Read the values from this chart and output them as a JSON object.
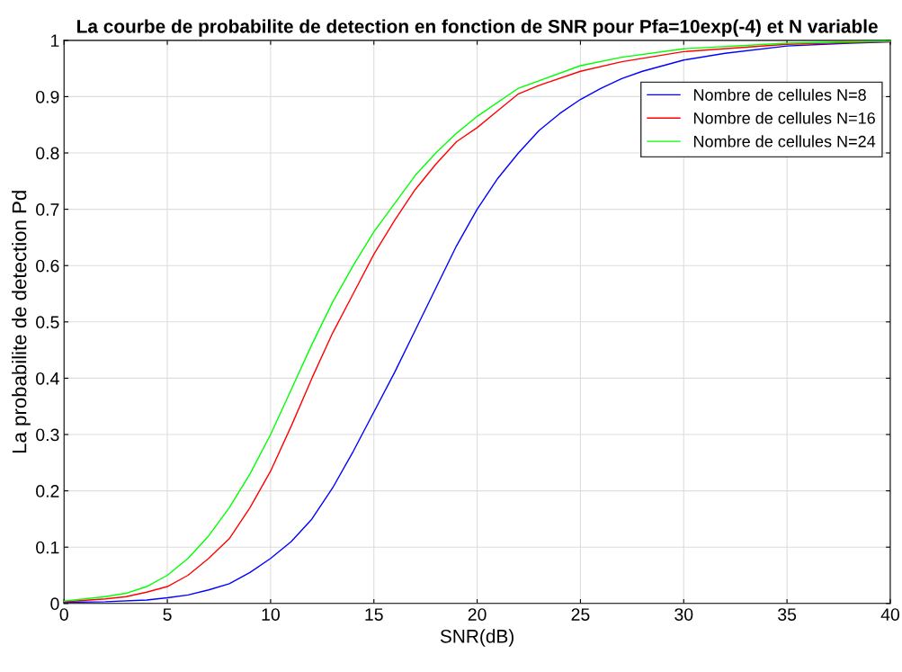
{
  "chart_data": {
    "type": "line",
    "title": "La courbe de probabilite de detection en fonction de SNR pour Pfa=10exp(-4) et N variable",
    "xlabel": "SNR(dB)",
    "ylabel": "La probabilite de detection Pd",
    "series": [
      {
        "name": "Nombre de cellules N=8",
        "color": "#0000ff",
        "x": [
          0,
          2,
          4,
          5,
          6,
          7,
          8,
          9,
          10,
          11,
          12,
          13,
          14,
          15,
          16,
          17,
          18,
          19,
          20,
          21,
          22,
          23,
          24,
          25,
          26,
          27,
          28,
          30,
          32,
          35,
          38,
          40
        ],
        "values": [
          0.002,
          0.003,
          0.006,
          0.01,
          0.015,
          0.024,
          0.035,
          0.055,
          0.08,
          0.11,
          0.15,
          0.205,
          0.27,
          0.34,
          0.41,
          0.485,
          0.56,
          0.635,
          0.7,
          0.755,
          0.8,
          0.84,
          0.87,
          0.895,
          0.915,
          0.932,
          0.945,
          0.965,
          0.977,
          0.99,
          0.995,
          0.997
        ]
      },
      {
        "name": "Nombre de cellules N=16",
        "color": "#ff0000",
        "x": [
          0,
          2,
          3,
          4,
          5,
          6,
          7,
          8,
          9,
          10,
          11,
          12,
          13,
          14,
          15,
          16,
          17,
          18,
          19,
          20,
          21,
          22,
          23,
          25,
          27,
          30,
          35,
          40
        ],
        "values": [
          0.003,
          0.008,
          0.012,
          0.02,
          0.03,
          0.05,
          0.08,
          0.115,
          0.17,
          0.235,
          0.315,
          0.4,
          0.48,
          0.55,
          0.62,
          0.68,
          0.735,
          0.78,
          0.82,
          0.845,
          0.875,
          0.905,
          0.92,
          0.945,
          0.962,
          0.98,
          0.993,
          0.998
        ]
      },
      {
        "name": "Nombre de cellules N=24",
        "color": "#00ff00",
        "x": [
          0,
          2,
          3,
          4,
          5,
          6,
          7,
          8,
          9,
          10,
          11,
          12,
          13,
          14,
          15,
          16,
          17,
          18,
          19,
          20,
          22,
          25,
          27,
          30,
          35,
          40
        ],
        "values": [
          0.004,
          0.012,
          0.018,
          0.03,
          0.05,
          0.08,
          0.12,
          0.17,
          0.23,
          0.3,
          0.38,
          0.46,
          0.535,
          0.6,
          0.66,
          0.71,
          0.76,
          0.8,
          0.835,
          0.865,
          0.915,
          0.955,
          0.97,
          0.985,
          0.995,
          0.999
        ]
      }
    ],
    "xlim": [
      0,
      40
    ],
    "xticks": [
      0,
      5,
      10,
      15,
      20,
      25,
      30,
      35,
      40
    ],
    "ylim": [
      0,
      1
    ],
    "yticks": [
      0,
      0.1,
      0.2,
      0.3,
      0.4,
      0.5,
      0.6,
      0.7,
      0.8,
      0.9,
      1
    ],
    "grid": true,
    "legend": "top right",
    "marker": "none",
    "line_style": "solid"
  }
}
